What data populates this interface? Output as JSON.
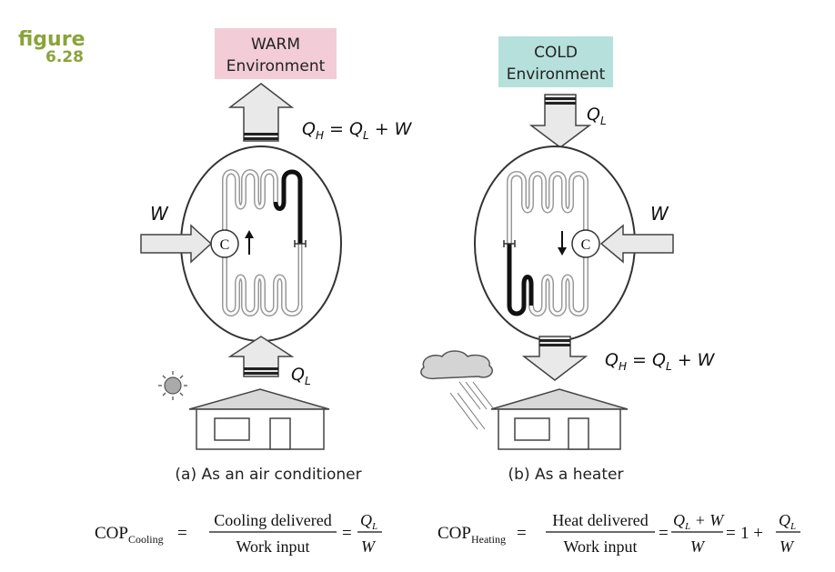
{
  "figure_label": {
    "word": "figure",
    "number": "6.28"
  },
  "left_panel": {
    "env_top_line1": "WARM",
    "env_top_line2": "Environment",
    "env_top_color": "#f2ccd6",
    "work_symbol": "W",
    "qh_expression": {
      "q": "Q",
      "h_sub": "H",
      "eq": " = ",
      "q2": "Q",
      "l_sub": "L",
      "tail": " + W"
    },
    "ql_label": {
      "q": "Q",
      "sub": "L"
    },
    "compressor_symbol": "C",
    "caption": "(a)  As an air conditioner"
  },
  "right_panel": {
    "env_top_line1": "COLD",
    "env_top_line2": "Environment",
    "env_top_color": "#b6e0dc",
    "work_symbol": "W",
    "ql_label": {
      "q": "Q",
      "sub": "L"
    },
    "qh_expression": {
      "q": "Q",
      "h_sub": "H",
      "eq": " = ",
      "q2": "Q",
      "l_sub": "L",
      "tail": " + W"
    },
    "compressor_symbol": "C",
    "caption": "(b)  As a heater"
  },
  "formula_cooling": {
    "cop": "COP",
    "cop_sub": "Cooling",
    "eq": "=",
    "numerator": "Cooling delivered",
    "denominator": "Work input",
    "q": "Q",
    "q_sub": "L",
    "w": "W"
  },
  "formula_heating": {
    "cop": "COP",
    "cop_sub": "Heating",
    "eq": "=",
    "numerator": "Heat delivered",
    "denominator": "Work input",
    "num2_q": "Q",
    "num2_sub": "L",
    "num2_tail": " + W",
    "den2": "W",
    "one_plus": "1 +",
    "q3": "Q",
    "q3_sub": "L",
    "w3": "W"
  },
  "colors": {
    "figure_label": "#8aa339",
    "arrow_fill": "#e9e9e9",
    "stroke": "#333333"
  }
}
